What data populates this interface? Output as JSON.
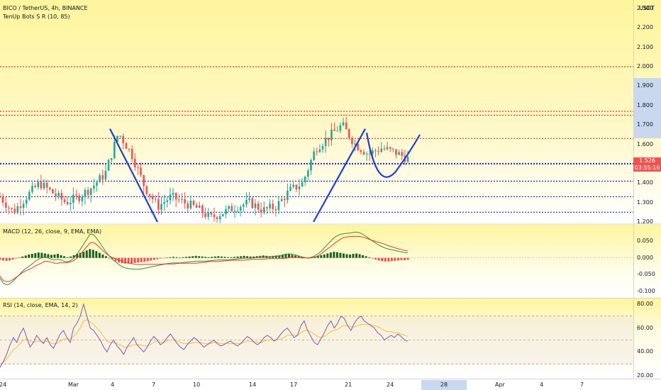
{
  "header": {
    "symbol": "BICO / TetherUS, 4h, BINANCE",
    "indicator": "TenUp Bots S R (10, 85)"
  },
  "currency": "USDT",
  "price_tag": {
    "price": "1.526",
    "countdown": "03:55:16"
  },
  "macd_label": "MACD (12, 26, close, 9, EMA, EMA)",
  "rsi_label": "RSI (14, close, EMA, 14, 2)",
  "colors": {
    "up": "#26a69a",
    "down": "#ef5350",
    "resistance": "#e53935",
    "support": "#1a27c9",
    "drawing": "#1f3fd1",
    "macd_line": "#388e3c",
    "signal_line": "#e53935",
    "rsi_line": "#7e57c2",
    "rsi_ma": "#fbc02d",
    "bg_yellow": "#fff9c4"
  },
  "chart_data": [
    {
      "type": "candlestick",
      "title": "BICO / TetherUS, 4h, BINANCE",
      "x_ticks": [
        "24",
        "Mar",
        "4",
        "7",
        "10",
        "14",
        "17",
        "21",
        "24",
        "28",
        "Apr",
        "4",
        "7"
      ],
      "highlighted_x_tick": "28",
      "y_ticks": [
        "2.300",
        "2.200",
        "2.100",
        "2.000",
        "1.900",
        "1.800",
        "1.700",
        "1.600",
        "1.500",
        "1.400",
        "1.300",
        "1.200"
      ],
      "ylim": [
        1.2,
        2.32
      ],
      "last_price": 1.526,
      "resistance_levels": [
        2.0,
        1.77,
        1.75,
        1.63
      ],
      "support_levels": [
        1.5,
        1.41,
        1.33,
        1.25
      ],
      "approx_path": [
        [
          "Feb 23",
          1.33
        ],
        [
          "Feb 24",
          1.25
        ],
        [
          "Feb 25",
          1.33
        ],
        [
          "Feb 26",
          1.4
        ],
        [
          "Feb 27",
          1.35
        ],
        [
          "Feb 28",
          1.3
        ],
        [
          "Mar 1",
          1.33
        ],
        [
          "Mar 2",
          1.38
        ],
        [
          "Mar 3",
          1.45
        ],
        [
          "Mar 4",
          1.66
        ],
        [
          "Mar 5",
          1.55
        ],
        [
          "Mar 6",
          1.38
        ],
        [
          "Mar 7",
          1.28
        ],
        [
          "Mar 8",
          1.33
        ],
        [
          "Mar 9",
          1.3
        ],
        [
          "Mar 10",
          1.27
        ],
        [
          "Mar 11",
          1.22
        ],
        [
          "Mar 12",
          1.25
        ],
        [
          "Mar 13",
          1.28
        ],
        [
          "Mar 14",
          1.3
        ],
        [
          "Mar 15",
          1.26
        ],
        [
          "Mar 16",
          1.28
        ],
        [
          "Mar 17",
          1.36
        ],
        [
          "Mar 18",
          1.4
        ],
        [
          "Mar 19",
          1.58
        ],
        [
          "Mar 20",
          1.64
        ],
        [
          "Mar 21",
          1.7
        ],
        [
          "Mar 22",
          1.6
        ],
        [
          "Mar 23",
          1.55
        ],
        [
          "Mar 24",
          1.58
        ],
        [
          "Mar 25",
          1.56
        ],
        [
          "Mar 26",
          1.526
        ]
      ]
    },
    {
      "type": "line",
      "title": "MACD (12, 26, close, 9, EMA, EMA)",
      "y_ticks": [
        "0.050",
        "0.000",
        "-0.050",
        "-0.100"
      ],
      "ylim": [
        -0.11,
        0.08
      ],
      "histogram": [
        -0.006,
        -0.008,
        -0.009,
        -0.008,
        -0.005,
        -0.002,
        0.001,
        0.004,
        0.007,
        0.01,
        0.012,
        0.014,
        0.016,
        0.015,
        0.013,
        0.011,
        0.009,
        0.01,
        0.012,
        0.008,
        0.005,
        0.002,
        0.004,
        0.008,
        0.012,
        0.015,
        0.018,
        0.022,
        0.026,
        0.024,
        0.02,
        0.015,
        0.01,
        0.005,
        0.0,
        -0.005,
        -0.01,
        -0.014,
        -0.016,
        -0.017,
        -0.017,
        -0.016,
        -0.015,
        -0.014,
        -0.013,
        -0.012,
        -0.01,
        -0.008,
        -0.006,
        -0.004,
        -0.002,
        -0.001,
        0.001,
        0.002,
        0.003,
        0.002,
        0.001,
        0.002,
        0.003,
        0.004,
        0.005,
        0.006,
        0.005,
        0.004,
        0.003,
        0.002,
        0.003,
        0.004,
        0.005,
        0.004,
        0.003,
        0.002,
        0.002,
        0.003,
        0.004,
        0.005,
        0.006,
        0.005,
        0.004,
        0.004,
        0.005,
        0.006,
        0.007,
        0.006,
        0.005,
        0.006,
        0.007,
        0.008,
        0.01,
        0.012,
        0.011,
        0.009,
        0.007,
        0.005,
        0.003,
        0.001,
        0.0,
        0.002,
        0.004,
        0.006,
        0.008,
        0.01,
        0.013,
        0.016,
        0.018,
        0.017,
        0.015,
        0.013,
        0.011,
        0.01,
        0.012,
        0.013,
        0.011,
        0.008,
        0.005,
        0.002,
        -0.002,
        -0.005,
        -0.008,
        -0.01,
        -0.011,
        -0.011,
        -0.01,
        -0.009,
        -0.008,
        -0.007,
        -0.007,
        -0.006
      ],
      "macd": [
        -0.06,
        -0.075,
        -0.08,
        -0.078,
        -0.07,
        -0.06,
        -0.05,
        -0.04,
        -0.032,
        -0.025,
        -0.018,
        -0.01,
        -0.004,
        0.0,
        0.003,
        0.0,
        -0.004,
        -0.006,
        -0.004,
        -0.006,
        -0.01,
        -0.012,
        -0.008,
        0.0,
        0.012,
        0.025,
        0.04,
        0.055,
        0.07,
        0.07,
        0.06,
        0.046,
        0.032,
        0.018,
        0.006,
        -0.004,
        -0.012,
        -0.02,
        -0.026,
        -0.03,
        -0.032,
        -0.033,
        -0.034,
        -0.034,
        -0.033,
        -0.031,
        -0.029,
        -0.027,
        -0.025,
        -0.023,
        -0.021,
        -0.019,
        -0.017,
        -0.016,
        -0.015,
        -0.015,
        -0.015,
        -0.014,
        -0.013,
        -0.012,
        -0.011,
        -0.01,
        -0.01,
        -0.01,
        -0.01,
        -0.009,
        -0.008,
        -0.007,
        -0.006,
        -0.006,
        -0.006,
        -0.006,
        -0.005,
        -0.004,
        -0.003,
        -0.002,
        -0.001,
        -0.001,
        -0.001,
        0.0,
        0.001,
        0.002,
        0.003,
        0.003,
        0.003,
        0.004,
        0.005,
        0.006,
        0.008,
        0.011,
        0.012,
        0.011,
        0.009,
        0.006,
        0.003,
        0.001,
        0.0,
        0.002,
        0.006,
        0.012,
        0.02,
        0.03,
        0.04,
        0.05,
        0.06,
        0.066,
        0.07,
        0.072,
        0.073,
        0.074,
        0.076,
        0.077,
        0.075,
        0.07,
        0.064,
        0.057,
        0.05,
        0.044,
        0.038,
        0.033,
        0.029,
        0.026,
        0.024,
        0.022,
        0.02,
        0.018,
        0.016,
        0.015
      ],
      "signal": [
        -0.054,
        -0.067,
        -0.071,
        -0.07,
        -0.065,
        -0.058,
        -0.051,
        -0.044,
        -0.039,
        -0.035,
        -0.03,
        -0.024,
        -0.02,
        -0.015,
        -0.01,
        -0.011,
        -0.013,
        -0.016,
        -0.016,
        -0.014,
        -0.015,
        -0.014,
        -0.012,
        -0.008,
        0.0,
        0.01,
        0.022,
        0.033,
        0.044,
        0.046,
        0.04,
        0.031,
        0.022,
        0.013,
        0.006,
        0.001,
        -0.002,
        -0.006,
        -0.01,
        -0.013,
        -0.015,
        -0.017,
        -0.019,
        -0.02,
        -0.02,
        -0.019,
        -0.019,
        -0.019,
        -0.019,
        -0.019,
        -0.019,
        -0.018,
        -0.018,
        -0.018,
        -0.018,
        -0.017,
        -0.016,
        -0.016,
        -0.016,
        -0.016,
        -0.016,
        -0.016,
        -0.015,
        -0.014,
        -0.013,
        -0.011,
        -0.011,
        -0.011,
        -0.011,
        -0.01,
        -0.009,
        -0.008,
        -0.007,
        -0.007,
        -0.007,
        -0.007,
        -0.007,
        -0.006,
        -0.005,
        -0.004,
        -0.004,
        -0.004,
        -0.004,
        -0.003,
        -0.002,
        -0.002,
        -0.002,
        -0.002,
        -0.002,
        -0.001,
        0.001,
        0.002,
        0.002,
        0.001,
        0.0,
        0.0,
        0.0,
        0.0,
        0.002,
        0.006,
        0.012,
        0.02,
        0.027,
        0.034,
        0.042,
        0.049,
        0.055,
        0.061,
        0.062,
        0.064,
        0.064,
        0.064,
        0.064,
        0.062,
        0.059,
        0.055,
        0.052,
        0.049,
        0.046,
        0.043,
        0.04,
        0.036,
        0.033,
        0.03,
        0.027,
        0.025,
        0.022,
        0.021
      ]
    },
    {
      "type": "line",
      "title": "RSI (14, close, EMA, 14, 2)",
      "y_ticks": [
        "80.00",
        "60.00",
        "40.00",
        "20.00"
      ],
      "ylim": [
        18,
        82
      ],
      "bands": [
        70,
        50,
        30
      ],
      "rsi": [
        27,
        32,
        38,
        46,
        52,
        48,
        55,
        60,
        52,
        44,
        48,
        54,
        50,
        47,
        52,
        46,
        43,
        49,
        55,
        58,
        52,
        48,
        60,
        64,
        70,
        80,
        70,
        60,
        58,
        54,
        50,
        44,
        40,
        46,
        50,
        45,
        42,
        38,
        44,
        48,
        52,
        46,
        43,
        40,
        44,
        49,
        53,
        50,
        46,
        48,
        52,
        55,
        51,
        47,
        44,
        42,
        46,
        49,
        52,
        50,
        47,
        44,
        46,
        48,
        50,
        47,
        45,
        46,
        48,
        49,
        47,
        45,
        47,
        50,
        53,
        51,
        48,
        46,
        48,
        52,
        54,
        52,
        49,
        51,
        55,
        58,
        60,
        56,
        52,
        54,
        62,
        66,
        58,
        53,
        48,
        46,
        51,
        56,
        62,
        66,
        60,
        64,
        70,
        68,
        62,
        58,
        64,
        68,
        70,
        66,
        64,
        62,
        60,
        56,
        54,
        50,
        52,
        54,
        52,
        55,
        53,
        50,
        49
      ],
      "rsi_ma": [
        30,
        31,
        34,
        38,
        42,
        44,
        47,
        50,
        51,
        49,
        48,
        49,
        49,
        48,
        49,
        48,
        47,
        47,
        49,
        51,
        51,
        50,
        53,
        56,
        60,
        66,
        67,
        65,
        63,
        60,
        57,
        53,
        49,
        48,
        48,
        47,
        46,
        44,
        44,
        45,
        46,
        46,
        46,
        45,
        45,
        46,
        48,
        49,
        48,
        48,
        49,
        50,
        50,
        49,
        48,
        47,
        47,
        47,
        48,
        48,
        48,
        47,
        47,
        47,
        48,
        48,
        47,
        47,
        47,
        47,
        47,
        47,
        47,
        48,
        49,
        49,
        49,
        48,
        48,
        49,
        50,
        50,
        50,
        50,
        51,
        52,
        54,
        54,
        54,
        54,
        56,
        58,
        58,
        57,
        55,
        53,
        52,
        53,
        55,
        57,
        58,
        59,
        61,
        62,
        62,
        61,
        61,
        62,
        63,
        63,
        63,
        63,
        62,
        61,
        60,
        58,
        57,
        57,
        56,
        56,
        55,
        54,
        53
      ]
    }
  ]
}
